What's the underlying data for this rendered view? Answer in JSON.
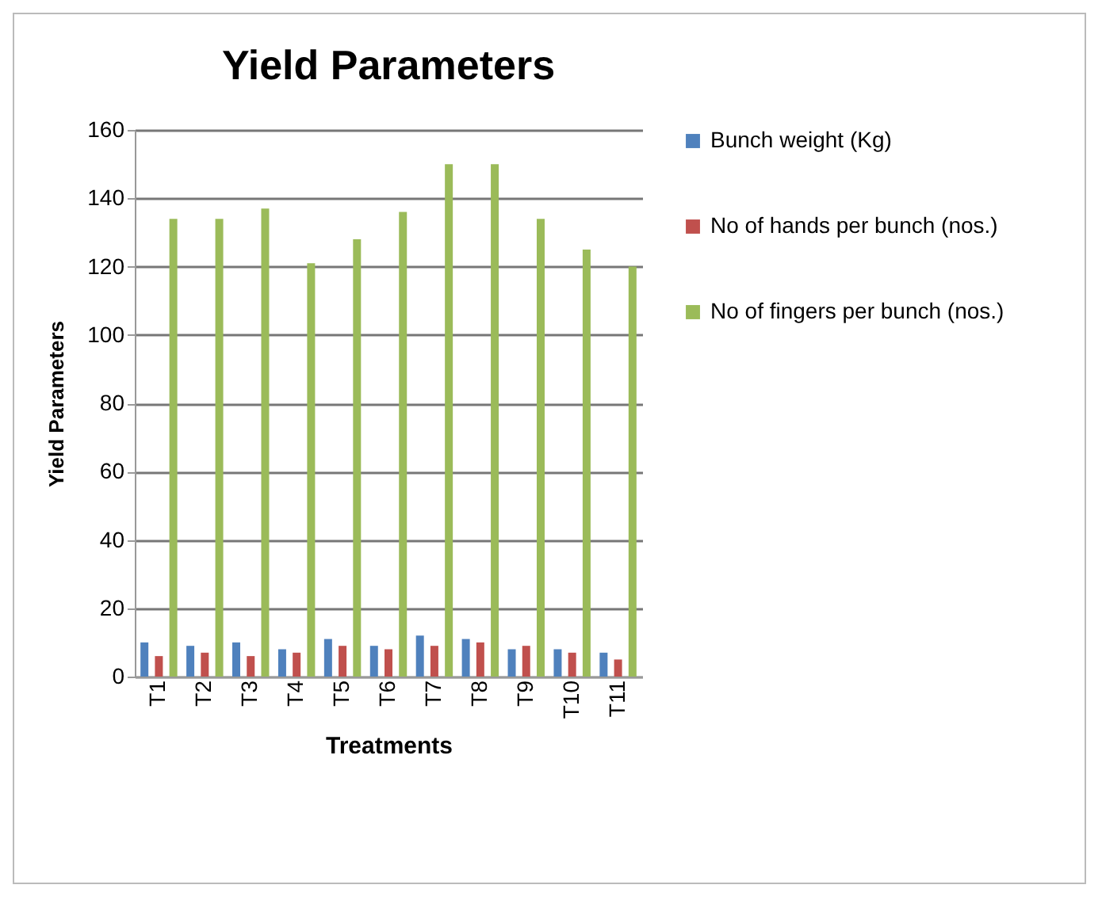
{
  "chart_data": {
    "type": "bar",
    "title": "Yield Parameters",
    "xlabel": "Treatments",
    "ylabel": "Yield Parameters",
    "categories": [
      "T1",
      "T2",
      "T3",
      "T4",
      "T5",
      "T6",
      "T7",
      "T8",
      "T9",
      "T10",
      "T11"
    ],
    "series": [
      {
        "name": "Bunch weight (Kg)",
        "color": "#4f81bd",
        "values": [
          10,
          9,
          10,
          8,
          11,
          9,
          12,
          11,
          8,
          8,
          7
        ]
      },
      {
        "name": "No of hands per bunch (nos.)",
        "color": "#c0504d",
        "values": [
          6,
          7,
          6,
          7,
          9,
          8,
          9,
          10,
          9,
          7,
          5
        ]
      },
      {
        "name": "No of fingers per bunch (nos.)",
        "color": "#9bbb59",
        "values": [
          134,
          134,
          137,
          121,
          128,
          136,
          150,
          150,
          134,
          125,
          120
        ]
      }
    ],
    "ylim": [
      0,
      160
    ],
    "yticks": [
      0,
      20,
      40,
      60,
      80,
      100,
      120,
      140,
      160
    ],
    "grid": "y",
    "legend": "right"
  }
}
